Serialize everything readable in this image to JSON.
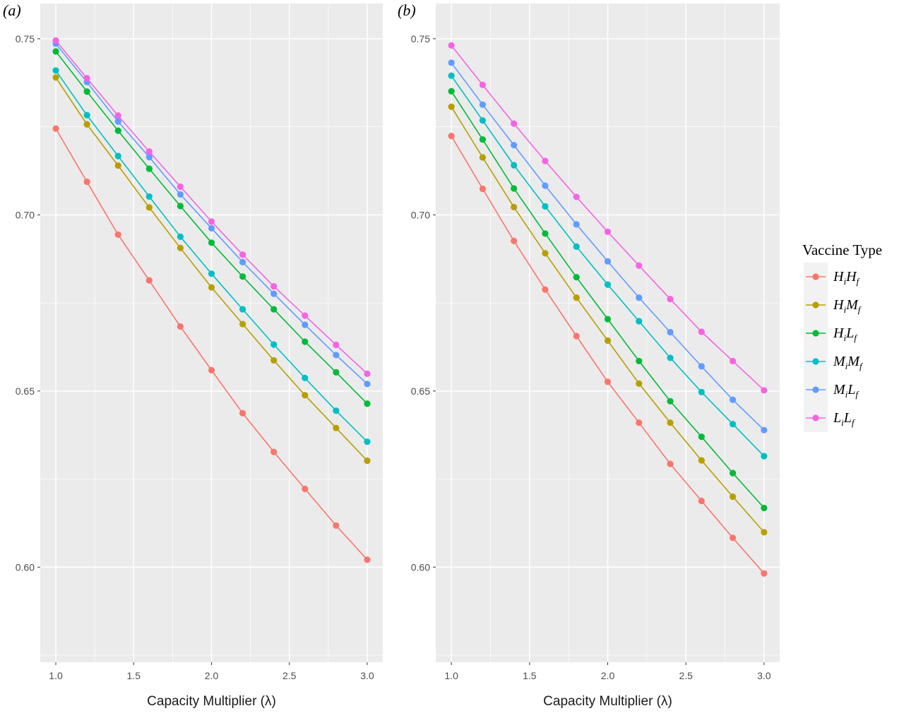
{
  "chart_data": [
    {
      "type": "line",
      "panel_label": "(a)",
      "xlabel": "Capacity Multiplier (λ)",
      "ylabel": "",
      "xlim": [
        0.9,
        3.1
      ],
      "ylim": [
        0.573,
        0.76
      ],
      "x_ticks": [
        1.0,
        1.5,
        2.0,
        2.5,
        3.0
      ],
      "x_tick_labels": [
        "1.0",
        "1.5",
        "2.0",
        "2.5",
        "3.0"
      ],
      "y_ticks": [
        0.6,
        0.65,
        0.7,
        0.75
      ],
      "y_tick_labels": [
        "0.60",
        "0.65",
        "0.70",
        "0.75"
      ],
      "grid": true,
      "x": [
        1.0,
        1.2,
        1.4,
        1.6,
        1.8,
        2.0,
        2.2,
        2.4,
        2.6,
        2.8,
        3.0
      ],
      "series": [
        {
          "name": "HiHf",
          "color": "#F8766D",
          "values": [
            0.7245,
            0.7094,
            0.6944,
            0.6814,
            0.6683,
            0.6559,
            0.6437,
            0.6327,
            0.6222,
            0.6118,
            0.6021
          ]
        },
        {
          "name": "HiMf",
          "color": "#B79F00",
          "values": [
            0.739,
            0.7257,
            0.714,
            0.7021,
            0.6906,
            0.6794,
            0.669,
            0.6587,
            0.6488,
            0.6395,
            0.6302
          ]
        },
        {
          "name": "HiLf",
          "color": "#00BA38",
          "values": [
            0.7464,
            0.735,
            0.7239,
            0.7131,
            0.7025,
            0.6921,
            0.6825,
            0.6732,
            0.664,
            0.6553,
            0.6464
          ]
        },
        {
          "name": "MiMf",
          "color": "#00BFC4",
          "values": [
            0.741,
            0.7283,
            0.7167,
            0.7052,
            0.6938,
            0.6833,
            0.6732,
            0.6632,
            0.6537,
            0.6444,
            0.6356
          ]
        },
        {
          "name": "MiLf",
          "color": "#619CFF",
          "values": [
            0.7486,
            0.7377,
            0.7265,
            0.7164,
            0.7058,
            0.6962,
            0.6866,
            0.6776,
            0.6688,
            0.6602,
            0.652
          ]
        },
        {
          "name": "LiLf",
          "color": "#F564E3",
          "values": [
            0.7495,
            0.7388,
            0.7282,
            0.718,
            0.708,
            0.6981,
            0.6887,
            0.6797,
            0.6714,
            0.6631,
            0.6549
          ]
        }
      ]
    },
    {
      "type": "line",
      "panel_label": "(b)",
      "xlabel": "Capacity Multiplier (λ)",
      "ylabel": "",
      "xlim": [
        0.9,
        3.1
      ],
      "ylim": [
        0.573,
        0.76
      ],
      "x_ticks": [
        1.0,
        1.5,
        2.0,
        2.5,
        3.0
      ],
      "x_tick_labels": [
        "1.0",
        "1.5",
        "2.0",
        "2.5",
        "3.0"
      ],
      "y_ticks": [
        0.6,
        0.65,
        0.7,
        0.75
      ],
      "y_tick_labels": [
        "0.60",
        "0.65",
        "0.70",
        "0.75"
      ],
      "grid": true,
      "x": [
        1.0,
        1.2,
        1.4,
        1.6,
        1.8,
        2.0,
        2.2,
        2.4,
        2.6,
        2.8,
        3.0
      ],
      "series": [
        {
          "name": "HiHf",
          "color": "#F8766D",
          "values": [
            0.7224,
            0.7074,
            0.6926,
            0.6788,
            0.6656,
            0.6526,
            0.641,
            0.6293,
            0.6188,
            0.6083,
            0.5982
          ]
        },
        {
          "name": "HiMf",
          "color": "#B79F00",
          "values": [
            0.7307,
            0.7163,
            0.7022,
            0.6891,
            0.6765,
            0.6643,
            0.6521,
            0.641,
            0.6303,
            0.62,
            0.6099
          ]
        },
        {
          "name": "HiLf",
          "color": "#00BA38",
          "values": [
            0.7351,
            0.7214,
            0.7075,
            0.6947,
            0.6823,
            0.6704,
            0.6585,
            0.6471,
            0.637,
            0.6267,
            0.6168
          ]
        },
        {
          "name": "MiMf",
          "color": "#00BFC4",
          "values": [
            0.7395,
            0.7268,
            0.7141,
            0.7024,
            0.691,
            0.6802,
            0.6698,
            0.6594,
            0.6497,
            0.6406,
            0.6315
          ]
        },
        {
          "name": "MiLf",
          "color": "#619CFF",
          "values": [
            0.7432,
            0.7313,
            0.7198,
            0.7083,
            0.6973,
            0.6868,
            0.6765,
            0.6667,
            0.657,
            0.6475,
            0.6389
          ]
        },
        {
          "name": "LiLf",
          "color": "#F564E3",
          "values": [
            0.7481,
            0.7369,
            0.7259,
            0.7153,
            0.7051,
            0.6952,
            0.6856,
            0.6761,
            0.6668,
            0.6585,
            0.6502
          ]
        }
      ]
    }
  ],
  "legend": {
    "title": "Vaccine Type",
    "items": [
      {
        "main1": "H",
        "sub1": "i",
        "main2": "H",
        "sub2": "f",
        "color": "#F8766D"
      },
      {
        "main1": "H",
        "sub1": "i",
        "main2": "M",
        "sub2": "f",
        "color": "#B79F00"
      },
      {
        "main1": "H",
        "sub1": "i",
        "main2": "L",
        "sub2": "f",
        "color": "#00BA38"
      },
      {
        "main1": "M",
        "sub1": "i",
        "main2": "M",
        "sub2": "f",
        "color": "#00BFC4"
      },
      {
        "main1": "M",
        "sub1": "i",
        "main2": "L",
        "sub2": "f",
        "color": "#619CFF"
      },
      {
        "main1": "L",
        "sub1": "i",
        "main2": "L",
        "sub2": "f",
        "color": "#F564E3"
      }
    ]
  }
}
